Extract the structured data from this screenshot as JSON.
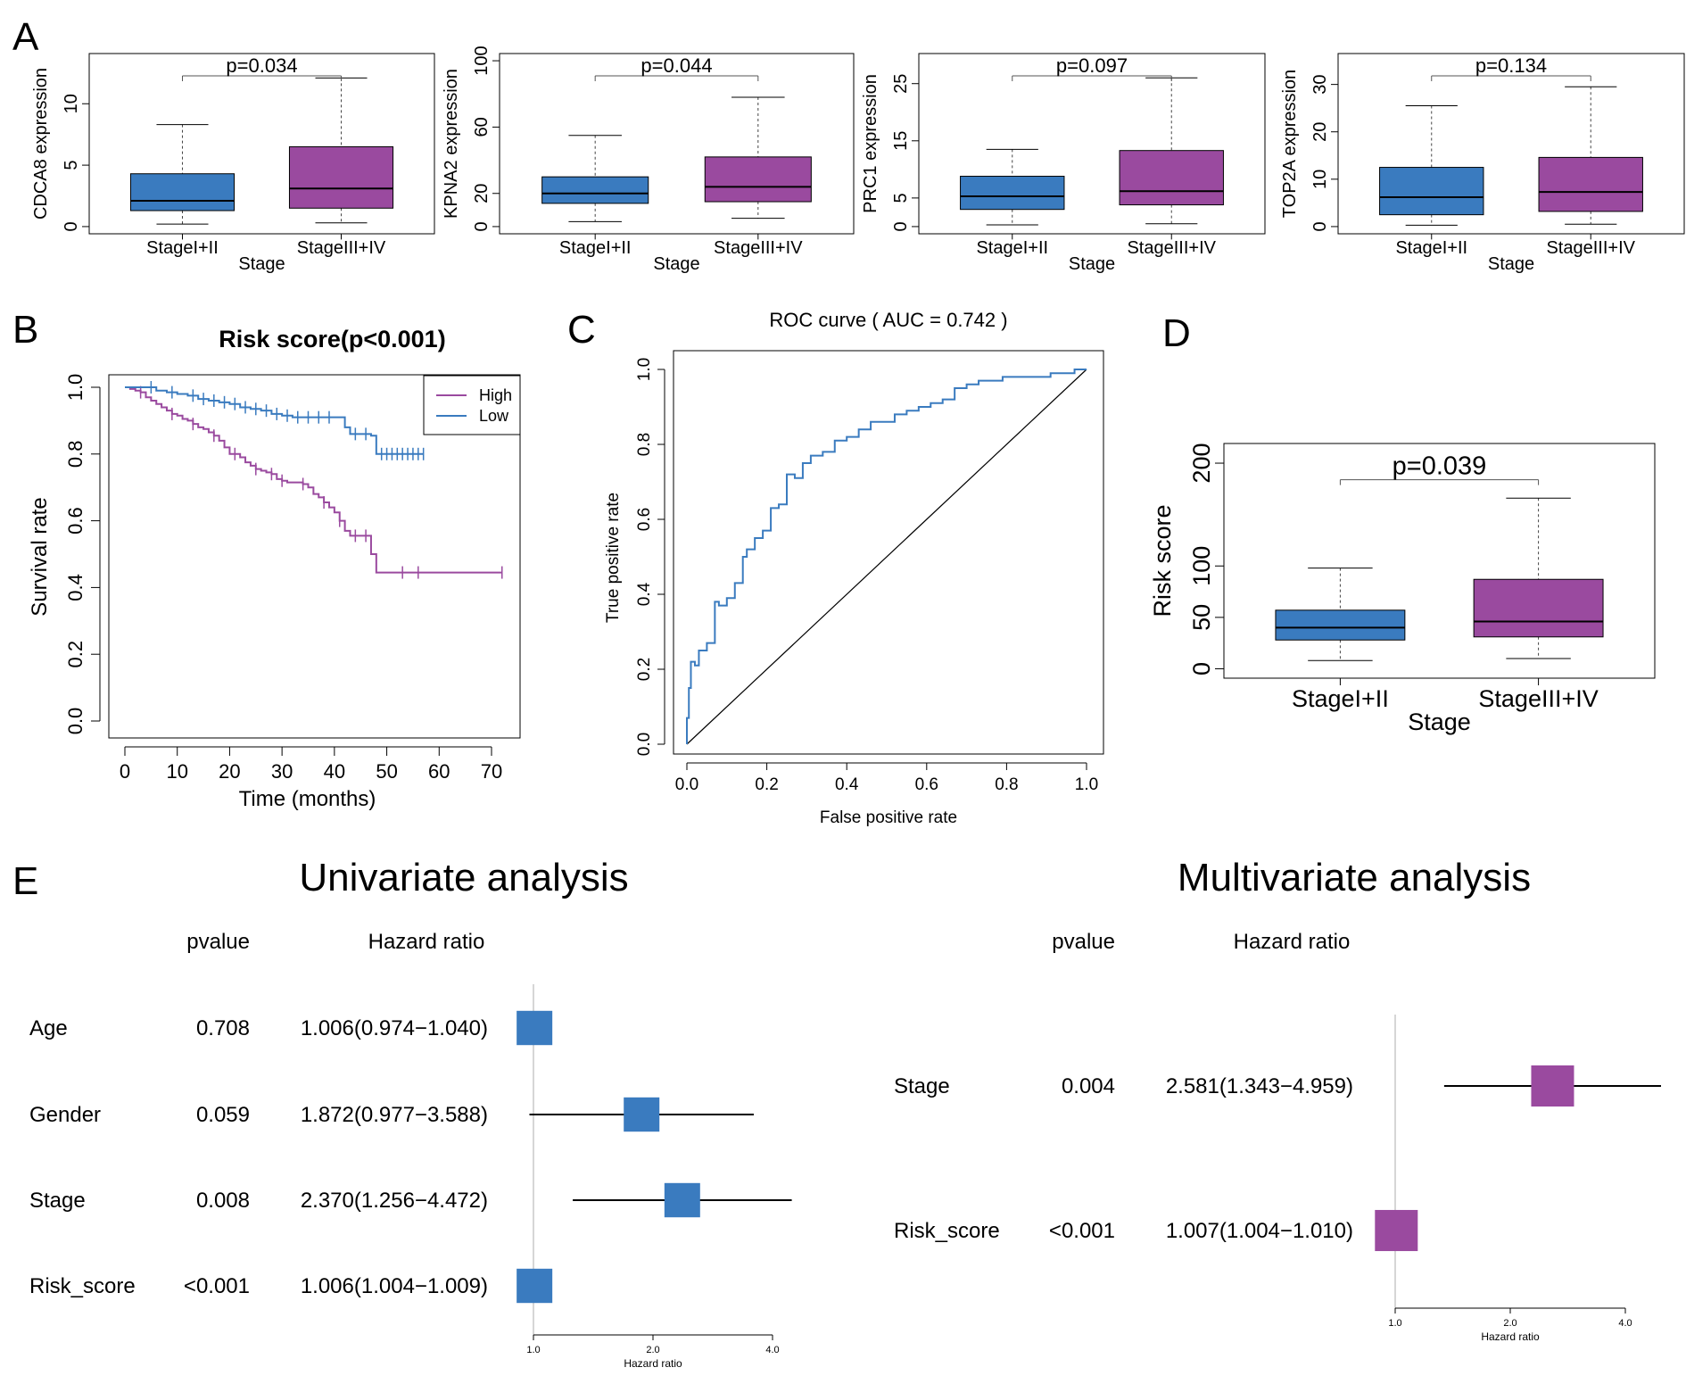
{
  "figure": {
    "panels": [
      {
        "letter": "A"
      },
      {
        "letter": "B"
      },
      {
        "letter": "C"
      },
      {
        "letter": "D"
      },
      {
        "letter": "E"
      }
    ]
  },
  "colors": {
    "blue": "#3a7bbf",
    "purple": "#9a4a9f",
    "high": "#9a4a9f",
    "low": "#3a7bbf",
    "roc": "#3a7bbf",
    "grey_line": "#c8c8c8"
  },
  "chart_data": [
    {
      "id": "boxA1",
      "type": "box",
      "xlabel": "Stage",
      "ylabel": "CDCA8 expression",
      "pvalue": "p=0.034",
      "ylim": [
        0,
        13.5
      ],
      "yticks": [
        0,
        5,
        10
      ],
      "categories": [
        "StageI+II",
        "StageIII+IV"
      ],
      "boxes": [
        {
          "min": 0.2,
          "q1": 1.3,
          "median": 2.1,
          "q3": 4.3,
          "max": 8.3
        },
        {
          "min": 0.3,
          "q1": 1.5,
          "median": 3.1,
          "q3": 6.5,
          "max": 12.1
        }
      ]
    },
    {
      "id": "boxA2",
      "type": "box",
      "xlabel": "Stage",
      "ylabel": "KPNA2 expression",
      "pvalue": "p=0.044",
      "ylim": [
        0,
        100
      ],
      "yticks": [
        0,
        20,
        60,
        100
      ],
      "categories": [
        "StageI+II",
        "StageIII+IV"
      ],
      "boxes": [
        {
          "min": 3,
          "q1": 14,
          "median": 20,
          "q3": 30,
          "max": 55
        },
        {
          "min": 5,
          "q1": 15,
          "median": 24,
          "q3": 42,
          "max": 78
        }
      ]
    },
    {
      "id": "boxA3",
      "type": "box",
      "xlabel": "Stage",
      "ylabel": "PRC1 expression",
      "pvalue": "p=0.097",
      "ylim": [
        0,
        29
      ],
      "yticks": [
        0,
        5,
        15,
        25
      ],
      "categories": [
        "StageI+II",
        "StageIII+IV"
      ],
      "boxes": [
        {
          "min": 0.3,
          "q1": 3,
          "median": 5.3,
          "q3": 8.8,
          "max": 13.5
        },
        {
          "min": 0.5,
          "q1": 3.8,
          "median": 6.2,
          "q3": 13.3,
          "max": 26
        }
      ]
    },
    {
      "id": "boxA4",
      "type": "box",
      "xlabel": "Stage",
      "ylabel": "TOP2A expression",
      "pvalue": "p=0.134",
      "ylim": [
        0,
        35
      ],
      "yticks": [
        0,
        10,
        20,
        30
      ],
      "categories": [
        "StageI+II",
        "StageIII+IV"
      ],
      "boxes": [
        {
          "min": 0.3,
          "q1": 2.5,
          "median": 6.2,
          "q3": 12.5,
          "max": 25.5
        },
        {
          "min": 0.5,
          "q1": 3.2,
          "median": 7.3,
          "q3": 14.6,
          "max": 29.5
        }
      ]
    },
    {
      "id": "km",
      "type": "line",
      "title": "Risk score(p<0.001)",
      "xlabel": "Time (months)",
      "ylabel": "Survival rate",
      "xlim": [
        0,
        72
      ],
      "ylim": [
        0,
        1
      ],
      "xticks": [
        0,
        10,
        20,
        30,
        40,
        50,
        60,
        70
      ],
      "yticks": [
        0.0,
        0.2,
        0.4,
        0.6,
        0.8,
        1.0
      ],
      "legend": {
        "position": "top-right",
        "entries": [
          "High",
          "Low"
        ]
      },
      "series": [
        {
          "name": "High",
          "x": [
            0,
            1,
            2,
            3,
            4,
            5,
            6,
            7,
            8,
            9,
            10,
            11,
            12,
            13,
            14,
            15,
            16,
            17,
            18,
            19,
            20,
            21,
            22,
            23,
            24,
            25,
            26,
            27,
            28,
            29,
            30,
            31,
            32,
            33,
            34,
            35,
            36,
            37,
            38,
            39,
            40,
            41,
            42,
            43,
            44,
            45,
            46,
            47,
            48,
            72
          ],
          "y": [
            1.0,
            0.995,
            0.99,
            0.985,
            0.97,
            0.96,
            0.95,
            0.94,
            0.93,
            0.92,
            0.915,
            0.905,
            0.9,
            0.89,
            0.88,
            0.875,
            0.865,
            0.855,
            0.84,
            0.82,
            0.8,
            0.8,
            0.79,
            0.775,
            0.765,
            0.755,
            0.75,
            0.745,
            0.74,
            0.725,
            0.72,
            0.715,
            0.715,
            0.715,
            0.71,
            0.7,
            0.68,
            0.67,
            0.655,
            0.64,
            0.625,
            0.6,
            0.57,
            0.555,
            0.555,
            0.555,
            0.555,
            0.5,
            0.445,
            0.445
          ],
          "censor": [
            3,
            9,
            13,
            17,
            21,
            25,
            28,
            30,
            34,
            38,
            41,
            44,
            46,
            53,
            56,
            72
          ]
        },
        {
          "name": "Low",
          "x": [
            0,
            4,
            6,
            8,
            10,
            12,
            14,
            16,
            18,
            20,
            22,
            24,
            26,
            28,
            30,
            32,
            34,
            36,
            38,
            40,
            41,
            42,
            43,
            44,
            45,
            46,
            47,
            48,
            57
          ],
          "y": [
            1.0,
            1.0,
            0.99,
            0.985,
            0.98,
            0.975,
            0.965,
            0.96,
            0.955,
            0.95,
            0.94,
            0.935,
            0.93,
            0.92,
            0.915,
            0.91,
            0.91,
            0.91,
            0.91,
            0.91,
            0.91,
            0.88,
            0.86,
            0.86,
            0.86,
            0.86,
            0.855,
            0.8,
            0.8
          ],
          "censor": [
            5,
            9,
            13,
            15,
            17,
            19,
            21,
            23,
            25,
            27,
            29,
            31,
            33,
            35,
            37,
            39,
            44,
            46,
            49,
            50,
            51,
            52,
            53,
            54,
            55,
            56,
            57
          ]
        }
      ]
    },
    {
      "id": "roc",
      "type": "line",
      "title": "ROC curve ( AUC =  0.742 )",
      "xlabel": "False positive rate",
      "ylabel": "True positive rate",
      "xlim": [
        0,
        1
      ],
      "ylim": [
        0,
        1
      ],
      "xticks": [
        0.0,
        0.2,
        0.4,
        0.6,
        0.8,
        1.0
      ],
      "yticks": [
        0.0,
        0.2,
        0.4,
        0.6,
        0.8,
        1.0
      ],
      "series": [
        {
          "x": [
            0,
            0,
            0.005,
            0.005,
            0.01,
            0.01,
            0.02,
            0.02,
            0.03,
            0.03,
            0.05,
            0.05,
            0.07,
            0.07,
            0.08,
            0.08,
            0.09,
            0.1,
            0.1,
            0.12,
            0.12,
            0.14,
            0.14,
            0.15,
            0.15,
            0.17,
            0.17,
            0.19,
            0.19,
            0.21,
            0.21,
            0.23,
            0.23,
            0.25,
            0.25,
            0.27,
            0.27,
            0.29,
            0.29,
            0.31,
            0.31,
            0.34,
            0.34,
            0.37,
            0.37,
            0.4,
            0.4,
            0.43,
            0.43,
            0.46,
            0.46,
            0.49,
            0.49,
            0.52,
            0.52,
            0.55,
            0.55,
            0.58,
            0.58,
            0.61,
            0.61,
            0.64,
            0.64,
            0.67,
            0.67,
            0.7,
            0.7,
            0.73,
            0.73,
            0.76,
            0.76,
            0.79,
            0.79,
            0.82,
            0.82,
            0.85,
            0.85,
            0.88,
            0.88,
            0.91,
            0.91,
            0.94,
            0.94,
            0.97,
            0.97,
            1.0
          ],
          "y": [
            0,
            0.07,
            0.07,
            0.15,
            0.15,
            0.22,
            0.22,
            0.21,
            0.21,
            0.25,
            0.25,
            0.27,
            0.27,
            0.38,
            0.38,
            0.37,
            0.37,
            0.37,
            0.39,
            0.39,
            0.43,
            0.43,
            0.5,
            0.5,
            0.52,
            0.52,
            0.55,
            0.55,
            0.57,
            0.57,
            0.63,
            0.63,
            0.64,
            0.64,
            0.72,
            0.72,
            0.71,
            0.71,
            0.75,
            0.75,
            0.77,
            0.77,
            0.78,
            0.78,
            0.81,
            0.81,
            0.82,
            0.82,
            0.84,
            0.84,
            0.86,
            0.86,
            0.86,
            0.86,
            0.88,
            0.88,
            0.89,
            0.89,
            0.9,
            0.9,
            0.91,
            0.91,
            0.92,
            0.92,
            0.95,
            0.95,
            0.96,
            0.96,
            0.97,
            0.97,
            0.97,
            0.97,
            0.98,
            0.98,
            0.98,
            0.98,
            0.98,
            0.98,
            0.98,
            0.98,
            0.99,
            0.99,
            0.99,
            0.99,
            1.0,
            1.0
          ]
        }
      ]
    },
    {
      "id": "boxD",
      "type": "box",
      "xlabel": "Stage",
      "ylabel": "Risk score",
      "pvalue": "p=0.039",
      "ylim": [
        0,
        210
      ],
      "yticks": [
        0,
        50,
        100,
        200
      ],
      "categories": [
        "StageI+II",
        "StageIII+IV"
      ],
      "boxes": [
        {
          "min": 8,
          "q1": 28,
          "median": 40,
          "q3": 57,
          "max": 98
        },
        {
          "min": 10,
          "q1": 31,
          "median": 46,
          "q3": 87,
          "max": 166
        }
      ]
    },
    {
      "id": "forest_uni",
      "type": "forest",
      "title": "Univariate analysis",
      "col_pvalue": "pvalue",
      "col_hr": "Hazard ratio",
      "xlabel": "Hazard ratio",
      "xticks": [
        "1.0",
        "2.0",
        "4.0"
      ],
      "rows": [
        {
          "label": "Age",
          "pvalue": "0.708",
          "hr_text": "1.006(0.974−1.040)",
          "hr": 1.006,
          "lo": 0.974,
          "hi": 1.04
        },
        {
          "label": "Gender",
          "pvalue": "0.059",
          "hr_text": "1.872(0.977−3.588)",
          "hr": 1.872,
          "lo": 0.977,
          "hi": 3.588
        },
        {
          "label": "Stage",
          "pvalue": "0.008",
          "hr_text": "2.370(1.256−4.472)",
          "hr": 2.37,
          "lo": 1.256,
          "hi": 4.472
        },
        {
          "label": "Risk_score",
          "pvalue": "<0.001",
          "hr_text": "1.006(1.004−1.009)",
          "hr": 1.006,
          "lo": 1.004,
          "hi": 1.009
        }
      ]
    },
    {
      "id": "forest_multi",
      "type": "forest",
      "title": "Multivariate analysis",
      "col_pvalue": "pvalue",
      "col_hr": "Hazard ratio",
      "xlabel": "Hazard ratio",
      "xticks": [
        "1.0",
        "2.0",
        "4.0"
      ],
      "rows": [
        {
          "label": "Stage",
          "pvalue": "0.004",
          "hr_text": "2.581(1.343−4.959)",
          "hr": 2.581,
          "lo": 1.343,
          "hi": 4.959
        },
        {
          "label": "Risk_score",
          "pvalue": "<0.001",
          "hr_text": "1.007(1.004−1.010)",
          "hr": 1.007,
          "lo": 1.004,
          "hi": 1.01
        }
      ]
    }
  ]
}
